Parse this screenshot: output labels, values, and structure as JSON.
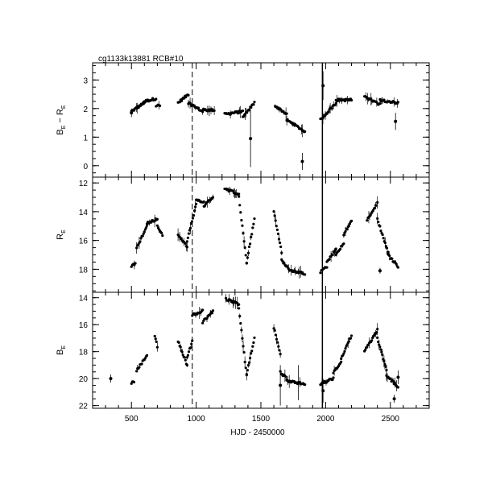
{
  "title": "cg1133k13881     RCB#10",
  "xlabel": "HJD - 2450000",
  "chart_data": [
    {
      "type": "scatter",
      "panel": "top",
      "ylabel_main": "B",
      "ylabel_sub1": "E",
      "ylabel_mid": " − R",
      "ylabel_sub2": "E",
      "xlim": [
        200,
        2800
      ],
      "ylim": [
        -0.4,
        3.6
      ],
      "inverted": false,
      "yticks": [
        0,
        1,
        2,
        3
      ],
      "segments": [
        {
          "x0": 500,
          "x1": 600,
          "y0": 1.9,
          "y1": 2.2
        },
        {
          "x0": 600,
          "x1": 690,
          "y0": 2.25,
          "y1": 2.35
        },
        {
          "x0": 690,
          "x1": 720,
          "y0": 2.1,
          "y1": 2.1
        },
        {
          "x0": 860,
          "x1": 940,
          "y0": 2.2,
          "y1": 2.5
        },
        {
          "x0": 940,
          "x1": 1050,
          "y0": 2.2,
          "y1": 1.9
        },
        {
          "x0": 1050,
          "x1": 1140,
          "y0": 1.95,
          "y1": 1.95
        },
        {
          "x0": 1220,
          "x1": 1360,
          "y0": 1.8,
          "y1": 1.9
        },
        {
          "x0": 1360,
          "x1": 1450,
          "y0": 1.7,
          "y1": 2.2
        },
        {
          "x0": 1610,
          "x1": 1700,
          "y0": 2.1,
          "y1": 1.8
        },
        {
          "x0": 1700,
          "x1": 1840,
          "y0": 1.6,
          "y1": 1.2
        },
        {
          "x0": 1960,
          "x1": 2080,
          "y0": 1.6,
          "y1": 2.2
        },
        {
          "x0": 2080,
          "x1": 2200,
          "y0": 2.3,
          "y1": 2.3
        },
        {
          "x0": 2300,
          "x1": 2420,
          "y0": 2.4,
          "y1": 2.15
        },
        {
          "x0": 2420,
          "x1": 2560,
          "y0": 2.3,
          "y1": 2.2
        }
      ],
      "singles": [
        {
          "x": 500,
          "y": 1.85,
          "err": 0.15
        },
        {
          "x": 1420,
          "y": 0.95,
          "err": 1.0
        },
        {
          "x": 1820,
          "y": 0.15,
          "err": 0.3
        },
        {
          "x": 1980,
          "y": 2.8,
          "err": 0.5
        },
        {
          "x": 2540,
          "y": 1.55,
          "err": 0.3
        }
      ]
    },
    {
      "type": "scatter",
      "panel": "middle",
      "ylabel_main": "R",
      "ylabel_sub1": "E",
      "ylabel_mid": "",
      "ylabel_sub2": "",
      "xlim": [
        200,
        2800
      ],
      "ylim": [
        19.6,
        11.6
      ],
      "inverted": true,
      "yticks": [
        12,
        14,
        16,
        18
      ],
      "segments": [
        {
          "x0": 500,
          "x1": 530,
          "y0": 17.8,
          "y1": 17.6
        },
        {
          "x0": 540,
          "x1": 620,
          "y0": 16.5,
          "y1": 15.0
        },
        {
          "x0": 620,
          "x1": 700,
          "y0": 14.8,
          "y1": 14.5
        },
        {
          "x0": 700,
          "x1": 740,
          "y0": 15.0,
          "y1": 15.6
        },
        {
          "x0": 860,
          "x1": 930,
          "y0": 15.6,
          "y1": 16.4
        },
        {
          "x0": 930,
          "x1": 1000,
          "y0": 16.0,
          "y1": 13.5
        },
        {
          "x0": 1000,
          "x1": 1060,
          "y0": 13.2,
          "y1": 13.3
        },
        {
          "x0": 1060,
          "x1": 1130,
          "y0": 13.6,
          "y1": 13.0
        },
        {
          "x0": 1220,
          "x1": 1330,
          "y0": 12.4,
          "y1": 12.8
        },
        {
          "x0": 1330,
          "x1": 1390,
          "y0": 13.0,
          "y1": 17.6
        },
        {
          "x0": 1390,
          "x1": 1450,
          "y0": 17.5,
          "y1": 14.5
        },
        {
          "x0": 1600,
          "x1": 1660,
          "y0": 14.0,
          "y1": 16.8
        },
        {
          "x0": 1660,
          "x1": 1720,
          "y0": 17.4,
          "y1": 18.0
        },
        {
          "x0": 1720,
          "x1": 1840,
          "y0": 18.1,
          "y1": 18.3
        },
        {
          "x0": 1960,
          "x1": 2010,
          "y0": 18.2,
          "y1": 17.8
        },
        {
          "x0": 2010,
          "x1": 2080,
          "y0": 17.5,
          "y1": 16.6
        },
        {
          "x0": 2080,
          "x1": 2140,
          "y0": 17.0,
          "y1": 16.2
        },
        {
          "x0": 2140,
          "x1": 2200,
          "y0": 15.6,
          "y1": 14.6
        },
        {
          "x0": 2320,
          "x1": 2400,
          "y0": 14.6,
          "y1": 13.4
        },
        {
          "x0": 2400,
          "x1": 2480,
          "y0": 14.5,
          "y1": 16.8
        },
        {
          "x0": 2480,
          "x1": 2560,
          "y0": 17.0,
          "y1": 17.8
        }
      ],
      "singles": [
        {
          "x": 2420,
          "y": 18.1,
          "err": 0.2
        }
      ]
    },
    {
      "type": "scatter",
      "panel": "bottom",
      "ylabel_main": "B",
      "ylabel_sub1": "E",
      "ylabel_mid": "",
      "ylabel_sub2": "",
      "xlim": [
        200,
        2800
      ],
      "ylim": [
        22.2,
        13.6
      ],
      "inverted": true,
      "yticks": [
        14,
        16,
        18,
        20,
        22
      ],
      "segments": [
        {
          "x0": 500,
          "x1": 520,
          "y0": 20.3,
          "y1": 20.2
        },
        {
          "x0": 540,
          "x1": 620,
          "y0": 19.4,
          "y1": 18.3
        },
        {
          "x0": 680,
          "x1": 700,
          "y0": 16.8,
          "y1": 17.6
        },
        {
          "x0": 860,
          "x1": 930,
          "y0": 17.2,
          "y1": 19.0
        },
        {
          "x0": 930,
          "x1": 970,
          "y0": 18.5,
          "y1": 17.2
        },
        {
          "x0": 970,
          "x1": 1050,
          "y0": 15.3,
          "y1": 15.0
        },
        {
          "x0": 1050,
          "x1": 1130,
          "y0": 15.8,
          "y1": 15.0
        },
        {
          "x0": 1230,
          "x1": 1330,
          "y0": 14.1,
          "y1": 14.5
        },
        {
          "x0": 1330,
          "x1": 1390,
          "y0": 14.8,
          "y1": 19.8
        },
        {
          "x0": 1390,
          "x1": 1450,
          "y0": 19.6,
          "y1": 17.0
        },
        {
          "x0": 1600,
          "x1": 1650,
          "y0": 16.2,
          "y1": 18.2
        },
        {
          "x0": 1650,
          "x1": 1700,
          "y0": 19.5,
          "y1": 20.0
        },
        {
          "x0": 1700,
          "x1": 1840,
          "y0": 20.2,
          "y1": 20.4
        },
        {
          "x0": 1960,
          "x1": 2060,
          "y0": 20.4,
          "y1": 20.0
        },
        {
          "x0": 2060,
          "x1": 2120,
          "y0": 19.5,
          "y1": 18.8
        },
        {
          "x0": 2120,
          "x1": 2200,
          "y0": 18.5,
          "y1": 16.8
        },
        {
          "x0": 2300,
          "x1": 2400,
          "y0": 18.0,
          "y1": 16.4
        },
        {
          "x0": 2400,
          "x1": 2470,
          "y0": 17.0,
          "y1": 19.4
        },
        {
          "x0": 2470,
          "x1": 2560,
          "y0": 19.8,
          "y1": 20.6
        }
      ],
      "singles": [
        {
          "x": 340,
          "y": 20.0,
          "err": 0.3
        },
        {
          "x": 1650,
          "y": 20.5,
          "err": 1.5
        },
        {
          "x": 1790,
          "y": 20.3,
          "err": 1.3
        },
        {
          "x": 1980,
          "y": 20.9,
          "err": 0.9
        },
        {
          "x": 2530,
          "y": 21.5,
          "err": 0.3
        },
        {
          "x": 2560,
          "y": 19.9,
          "err": 0.5
        }
      ]
    }
  ],
  "xticks": [
    500,
    1000,
    1500,
    2000,
    2500
  ],
  "vlines": [
    {
      "x": 970,
      "style": "dashed"
    },
    {
      "x": 1975,
      "style": "solid"
    }
  ]
}
